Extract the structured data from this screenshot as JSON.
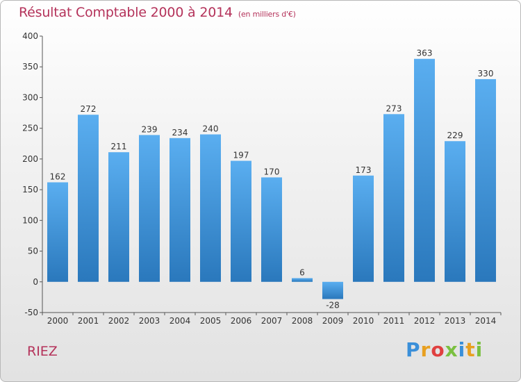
{
  "header": {
    "title": "Résultat Comptable 2000 à 2014",
    "subtitle": "(en milliers d'€)"
  },
  "footer": {
    "city": "RIEZ",
    "logo": "Proxiti"
  },
  "colors": {
    "accent": "#b4325a",
    "bar_top": "#5aaef0",
    "bar_bottom": "#2a78bc"
  },
  "chart_data": {
    "type": "bar",
    "categories": [
      "2000",
      "2001",
      "2002",
      "2003",
      "2004",
      "2005",
      "2006",
      "2007",
      "2008",
      "2009",
      "2010",
      "2011",
      "2012",
      "2013",
      "2014"
    ],
    "values": [
      162,
      272,
      211,
      239,
      234,
      240,
      197,
      170,
      6,
      -28,
      173,
      273,
      363,
      229,
      330
    ],
    "ylim": [
      -50,
      400
    ],
    "yticks": [
      -50,
      0,
      50,
      100,
      150,
      200,
      250,
      300,
      350,
      400
    ],
    "grid": false,
    "data_labels": true
  }
}
